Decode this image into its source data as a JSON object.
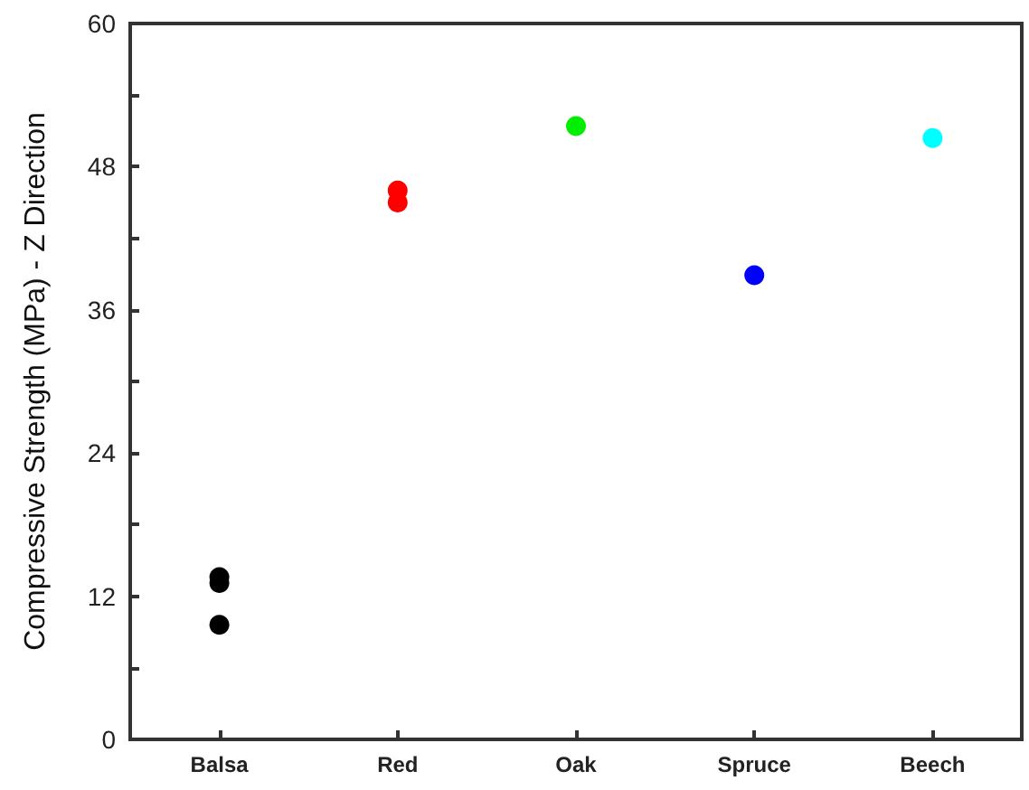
{
  "chart_data": {
    "type": "scatter",
    "ylabel": "Compressive Strength (MPa) - Z Direction",
    "categories": [
      "Balsa",
      "Red",
      "Oak",
      "Spruce",
      "Beech"
    ],
    "series": [
      {
        "color": "#000000",
        "x": [
          "Balsa",
          "Balsa",
          "Balsa"
        ],
        "values": [
          13.6,
          13.1,
          9.6
        ]
      },
      {
        "color": "#ff0000",
        "x": [
          "Red",
          "Red"
        ],
        "values": [
          45.0,
          46.0
        ]
      },
      {
        "color": "#00ee00",
        "x": [
          "Oak"
        ],
        "values": [
          51.4
        ]
      },
      {
        "color": "#0000ff",
        "x": [
          "Spruce"
        ],
        "values": [
          38.9
        ]
      },
      {
        "color": "#00ffff",
        "x": [
          "Beech"
        ],
        "values": [
          50.4
        ]
      }
    ],
    "ylim": [
      0,
      60
    ],
    "yticks": [
      0,
      {
        "value": 6,
        "label": null
      },
      12,
      {
        "value": 18,
        "label": null
      },
      24,
      {
        "value": 30,
        "label": null
      },
      36,
      {
        "value": 42,
        "label": null
      },
      48,
      {
        "value": 54,
        "label": null
      },
      60
    ],
    "marker": "circle"
  }
}
